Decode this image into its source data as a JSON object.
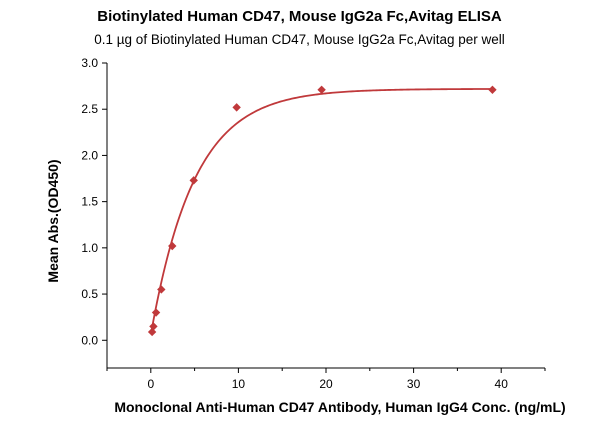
{
  "chart_data": {
    "type": "scatter",
    "title": "Biotinylated Human CD47, Mouse IgG2a Fc,Avitag ELISA",
    "subtitle": "0.1 µg of Biotinylated Human CD47, Mouse IgG2a Fc,Avitag per well",
    "xlabel": "Monoclonal Anti-Human CD47 Antibody, Human IgG4 Conc. (ng/mL)",
    "ylabel": "Mean Abs.(OD450)",
    "xlim": [
      -5,
      45
    ],
    "ylim": [
      -0.3,
      3.0
    ],
    "x_ticks": [
      0,
      10,
      20,
      30,
      40
    ],
    "y_ticks": [
      0.0,
      0.5,
      1.0,
      1.5,
      2.0,
      2.5,
      3.0
    ],
    "x_tick_labels": [
      "0",
      "10",
      "20",
      "30",
      "40"
    ],
    "y_tick_labels": [
      "0.0",
      "0.5",
      "1.0",
      "1.5",
      "2.0",
      "2.5",
      "3.0"
    ],
    "grid": false,
    "series": [
      {
        "color": "#c0393b",
        "marker": "diamond",
        "x": [
          0.15,
          0.3,
          0.6,
          1.2,
          2.45,
          4.9,
          9.8,
          19.5,
          39
        ],
        "y": [
          0.09,
          0.15,
          0.3,
          0.55,
          1.02,
          1.73,
          2.52,
          2.71,
          2.71
        ]
      }
    ],
    "fit_curve": {
      "color": "#c0393b",
      "top": 2.72,
      "bottom": 0.06,
      "k": 0.2
    }
  }
}
